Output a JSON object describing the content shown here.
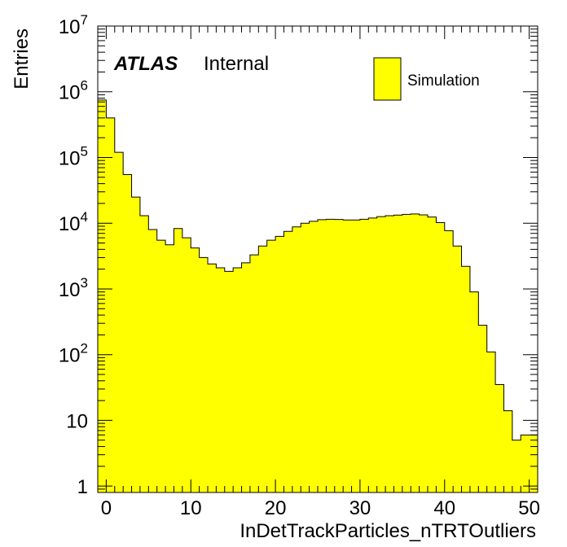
{
  "chart_data": {
    "type": "bar",
    "xlabel": "InDetTrackParticles_nTRTOutliers",
    "ylabel": "Entries",
    "xlim": [
      -1,
      51
    ],
    "ylim": [
      0.8,
      10000000
    ],
    "log_y": true,
    "x_ticks": [
      "0",
      "10",
      "20",
      "30",
      "40",
      "50"
    ],
    "y_ticks": [
      {
        "base": "1",
        "exp": ""
      },
      {
        "base": "10",
        "exp": ""
      },
      {
        "base": "10",
        "exp": "2"
      },
      {
        "base": "10",
        "exp": "3"
      },
      {
        "base": "10",
        "exp": "4"
      },
      {
        "base": "10",
        "exp": "5"
      },
      {
        "base": "10",
        "exp": "6"
      },
      {
        "base": "10",
        "exp": "7"
      }
    ],
    "bin_edges_start": -1,
    "bin_width": 1,
    "values": [
      750000,
      400000,
      120000,
      55000,
      25000,
      13000,
      8000,
      5500,
      4700,
      8300,
      6000,
      4200,
      3000,
      2400,
      2100,
      1850,
      2100,
      2500,
      3300,
      4500,
      5500,
      6300,
      7500,
      8800,
      10000,
      10700,
      11300,
      11500,
      11400,
      11200,
      11200,
      11500,
      12000,
      12600,
      13000,
      13300,
      13600,
      13800,
      13400,
      12400,
      10200,
      7700,
      4500,
      2200,
      900,
      280,
      110,
      35,
      14,
      5,
      6,
      6
    ],
    "legend": [
      {
        "label": "Simulation",
        "color": "#ffff00"
      }
    ],
    "legend_position": "top-right",
    "fill_color": "#ffff00",
    "grid": false
  },
  "atlas_label": {
    "bold": "ATLAS",
    "normal": "Internal"
  }
}
